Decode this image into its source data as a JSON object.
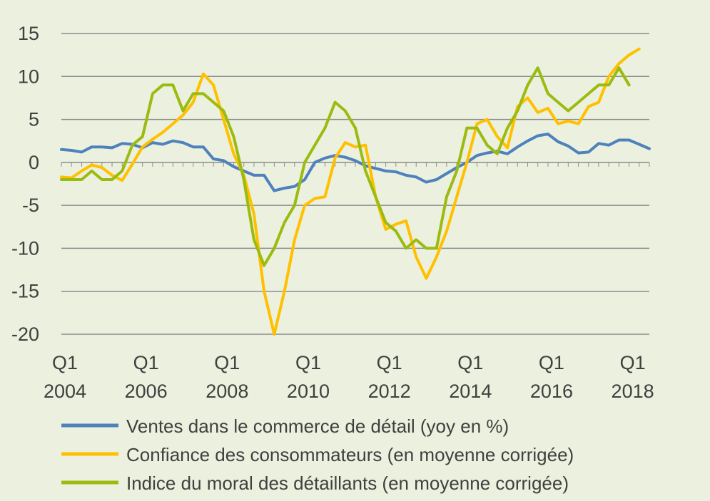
{
  "chart_data": {
    "type": "line",
    "title": "",
    "xlabel": "",
    "ylabel": "",
    "ylim": [
      -20,
      15
    ],
    "y_ticks": [
      15,
      10,
      5,
      0,
      -5,
      -10,
      -15,
      -20
    ],
    "grid": true,
    "legend_position": "bottom",
    "x_start": "Q1 2004",
    "x_end": "Q1 2018",
    "x_tick_labels": [
      {
        "q": "Q1",
        "year": "2004"
      },
      {
        "q": "Q1",
        "year": "2006"
      },
      {
        "q": "Q1",
        "year": "2008"
      },
      {
        "q": "Q1",
        "year": "2010"
      },
      {
        "q": "Q1",
        "year": "2012"
      },
      {
        "q": "Q1",
        "year": "2014"
      },
      {
        "q": "Q1",
        "year": "2016"
      },
      {
        "q": "Q1",
        "year": "2018"
      }
    ],
    "series": [
      {
        "name": "Ventes dans le commerce de détail (yoy en %)",
        "color": "#4f81bd",
        "values": [
          1.5,
          1.4,
          1.2,
          1.8,
          1.8,
          1.7,
          2.2,
          2.1,
          1.7,
          2.3,
          2.1,
          2.5,
          2.3,
          1.8,
          1.8,
          0.4,
          0.2,
          -0.5,
          -1.0,
          -1.5,
          -1.5,
          -3.3,
          -3.0,
          -2.8,
          -2.0,
          0.0,
          0.5,
          0.8,
          0.6,
          0.2,
          -0.4,
          -0.7,
          -1.0,
          -1.1,
          -1.5,
          -1.7,
          -2.3,
          -2.0,
          -1.3,
          -0.6,
          0.0,
          0.8,
          1.1,
          1.3,
          1.0,
          1.8,
          2.5,
          3.1,
          3.3,
          2.4,
          1.9,
          1.1,
          1.2,
          2.2,
          2.0,
          2.6,
          2.6,
          2.1,
          1.6
        ]
      },
      {
        "name": "Confiance des consommateurs (en moyenne corrigée)",
        "color": "#ffc000",
        "values": [
          -1.7,
          -1.8,
          -1.0,
          -0.3,
          -0.6,
          -1.5,
          -2.1,
          -0.2,
          1.8,
          2.7,
          3.5,
          4.5,
          5.5,
          7.0,
          10.3,
          9.0,
          5.0,
          1.0,
          -1.5,
          -6.0,
          -15.0,
          -20.0,
          -15.0,
          -9.0,
          -5.0,
          -4.2,
          -4.0,
          0.5,
          2.3,
          1.8,
          2.0,
          -4.0,
          -7.8,
          -7.2,
          -6.8,
          -11.0,
          -13.5,
          -11.0,
          -8.0,
          -4.0,
          0.0,
          4.5,
          5.0,
          3.0,
          1.7,
          6.5,
          7.5,
          5.8,
          6.3,
          4.5,
          4.8,
          4.5,
          6.5,
          7.0,
          10.0,
          11.5,
          12.5,
          13.2
        ]
      },
      {
        "name": "Indice du moral des détaillants (en moyenne corrigée)",
        "color": "#9bbb10",
        "values": [
          -2,
          -2,
          -2,
          -1,
          -2,
          -2,
          -1,
          2,
          3,
          8,
          9,
          9,
          6,
          8,
          8,
          7,
          6,
          3,
          -2,
          -9,
          -12,
          -10,
          -7,
          -5,
          0,
          2,
          4,
          7,
          6,
          4,
          -1,
          -4,
          -7,
          -8,
          -10,
          -9,
          -10,
          -10,
          -4,
          -1,
          4,
          4,
          2,
          1,
          4,
          6,
          9,
          11,
          8,
          7,
          6,
          7,
          8,
          9,
          9,
          11,
          9
        ]
      }
    ]
  }
}
